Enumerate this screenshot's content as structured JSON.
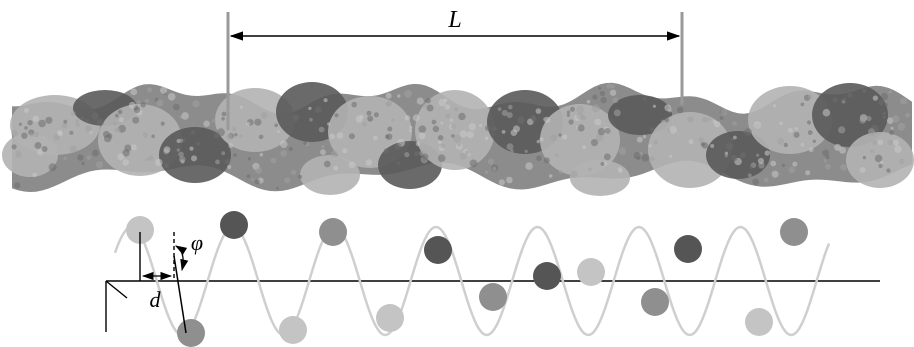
{
  "labels": {
    "length_symbol": "L",
    "distance_symbol": "d",
    "angle_symbol": "φ"
  },
  "colors": {
    "background": "#ffffff",
    "line": "#000000",
    "marker_line": "#9a9a9a",
    "helix_curve": "#cfcfcf",
    "subunit_dark": "#555555",
    "subunit_mid": "#8f8f8f",
    "subunit_light": "#c4c4c4",
    "protein_base": "#8c8c8c",
    "protein_light": "#b3b3b3",
    "protein_dark": "#5a5a5a"
  },
  "beads": [
    {
      "shade": "light"
    },
    {
      "shade": "mid"
    },
    {
      "shade": "dark"
    },
    {
      "shade": "light"
    },
    {
      "shade": "mid"
    },
    {
      "shade": "light"
    },
    {
      "shade": "dark"
    },
    {
      "shade": "mid"
    },
    {
      "shade": "dark"
    },
    {
      "shade": "light"
    },
    {
      "shade": "mid"
    },
    {
      "shade": "dark"
    },
    {
      "shade": "light"
    },
    {
      "shade": "mid"
    }
  ]
}
